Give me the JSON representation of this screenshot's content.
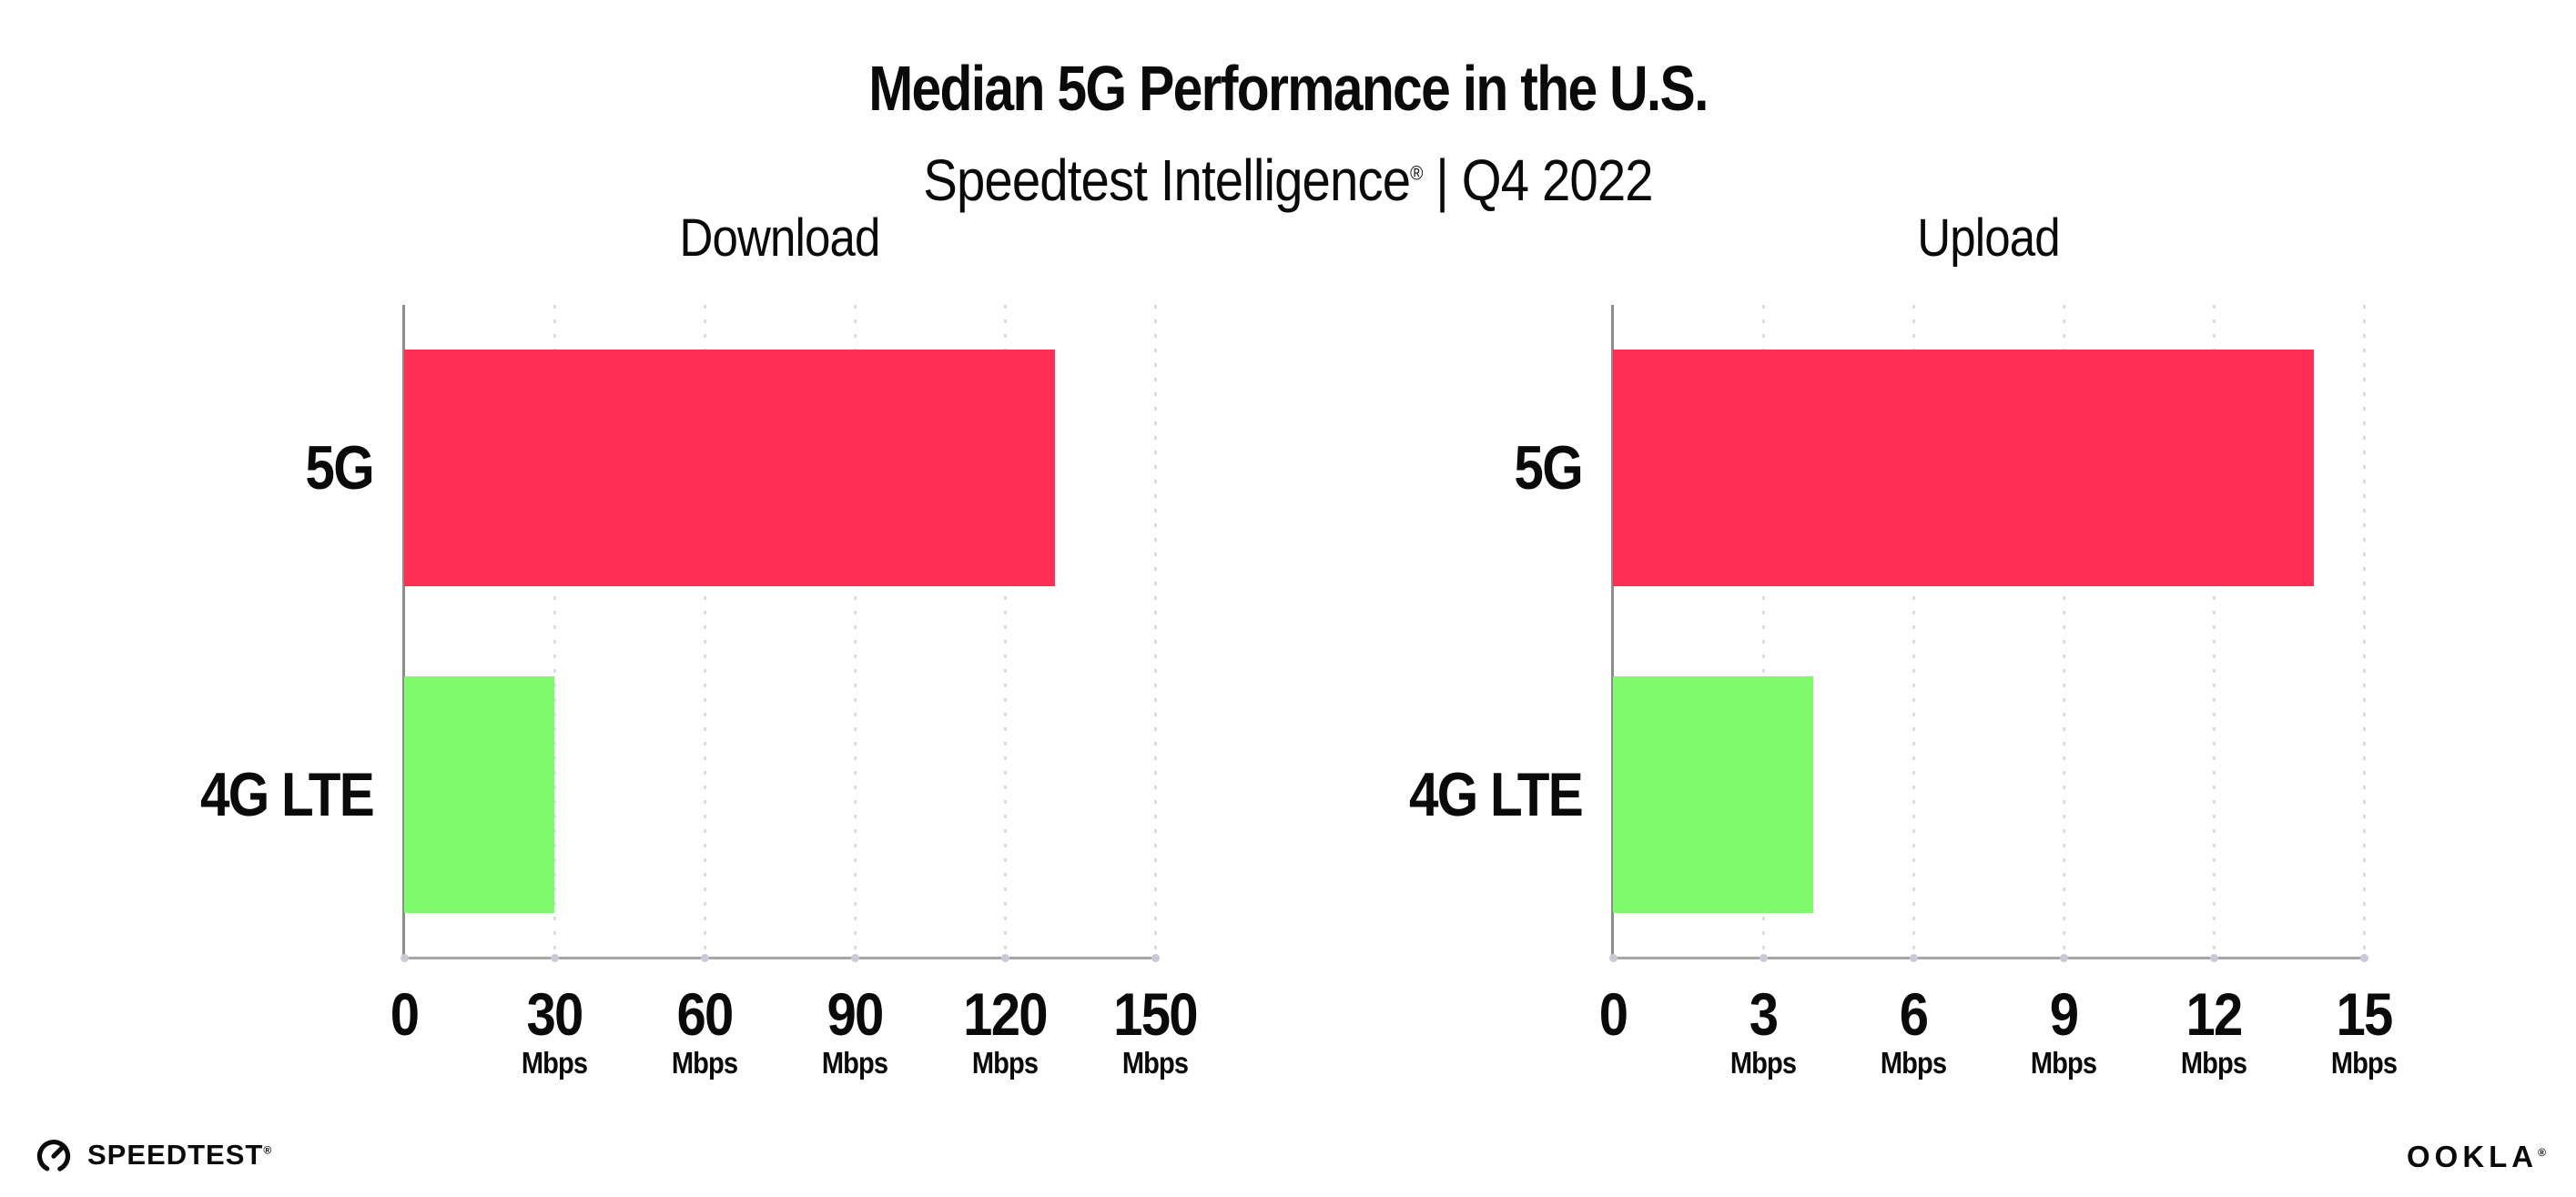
{
  "header": {
    "title": "Median 5G Performance in the U.S.",
    "subtitle": {
      "brand": "Speedtest Intelligence",
      "reg": "®",
      "separator": " | ",
      "period": "Q4 2022"
    }
  },
  "chart_data": [
    {
      "type": "bar",
      "orientation": "horizontal",
      "title": "Download",
      "categories": [
        "5G",
        "4G LTE"
      ],
      "values": [
        130,
        30
      ],
      "unit": "Mbps",
      "xlim": [
        0,
        150
      ],
      "xticks": [
        0,
        30,
        60,
        90,
        120,
        150
      ],
      "bar_colors": [
        "#FF2E55",
        "#7DFB6A"
      ],
      "grid": "dotted-vertical",
      "legend": "none"
    },
    {
      "type": "bar",
      "orientation": "horizontal",
      "title": "Upload",
      "categories": [
        "5G",
        "4G LTE"
      ],
      "values": [
        14,
        4
      ],
      "unit": "Mbps",
      "xlim": [
        0,
        15
      ],
      "xticks": [
        0,
        3,
        6,
        9,
        12,
        15
      ],
      "bar_colors": [
        "#FF2E55",
        "#7DFB6A"
      ],
      "grid": "dotted-vertical",
      "legend": "none"
    }
  ],
  "colors": {
    "bar_5g": "#FF2E55",
    "bar_4g_lte": "#7DFB6A",
    "y_axis": "#8C8C8C",
    "x_axis": "#A6A6A6",
    "gridline": "#DCDCE8",
    "text": "#0A0A0A",
    "background": "#FFFFFF"
  },
  "footer": {
    "speedtest_icon": "gauge-icon",
    "speedtest_label": "SPEEDTEST",
    "speedtest_reg": "®",
    "ookla_label": "OOKLA",
    "ookla_reg": "®"
  }
}
